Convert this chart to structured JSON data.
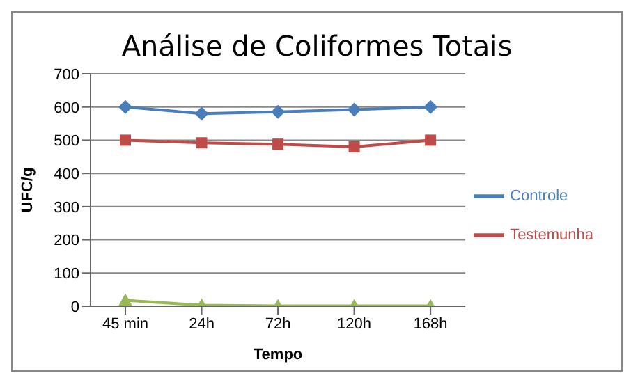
{
  "chart_data": {
    "type": "line",
    "title": "Análise de Coliformes Totais",
    "xlabel": "Tempo",
    "ylabel": "UFC/g",
    "categories": [
      "45 min",
      "24h",
      "72h",
      "120h",
      "168h"
    ],
    "series": [
      {
        "name": "Controle",
        "color": "#4a7ebb",
        "marker": "diamond",
        "values": [
          600,
          580,
          585,
          592,
          600
        ]
      },
      {
        "name": "Testemunha",
        "color": "#be4b48",
        "marker": "square",
        "values": [
          500,
          492,
          488,
          480,
          500
        ]
      },
      {
        "color": "#98b954",
        "marker": "triangle",
        "values": [
          18,
          3,
          1,
          1,
          1
        ]
      }
    ],
    "ylim": [
      0,
      700
    ],
    "yticks": [
      0,
      100,
      200,
      300,
      400,
      500,
      600,
      700
    ],
    "grid": "y",
    "legend": "right"
  }
}
